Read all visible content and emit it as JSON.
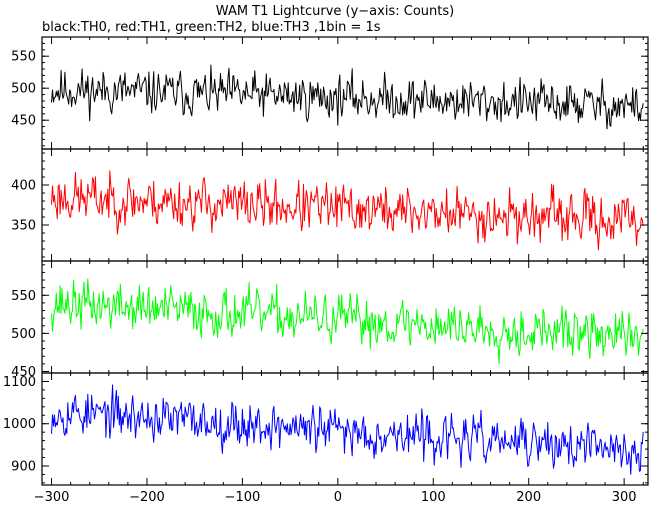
{
  "title": "WAM T1 Lightcurve (y−axis: Counts)",
  "subtitle": "black:TH0, red:TH1, green:TH2, blue:TH3 ,1bin = 1s",
  "chart_data": {
    "type": "line",
    "title": "WAM T1 Lightcurve (y−axis: Counts)",
    "subtitle": "black:TH0, red:TH1, green:TH2, blue:TH3 ,1bin = 1s",
    "xlabel": "",
    "xlim": [
      -310,
      325
    ],
    "x_ticks": [
      -300,
      -200,
      -100,
      0,
      100,
      200,
      300
    ],
    "x_tick_labels": [
      "−300",
      "−200",
      "−100",
      "0",
      "100",
      "200",
      "300"
    ],
    "x_minor_step": 20,
    "x_range_data": [
      -300,
      320
    ],
    "bin_seconds": 1,
    "grid": false,
    "legend": "none",
    "panels": [
      {
        "name": "TH0",
        "color": "#000000",
        "ylim": [
          405,
          580
        ],
        "y_ticks": [
          450,
          500,
          550
        ],
        "y_tick_labels": [
          "450",
          "500",
          "550"
        ],
        "y_minor_step": 10,
        "mean_start": 498,
        "mean_end": 472,
        "noise": 24,
        "seed": 11
      },
      {
        "name": "TH1",
        "color": "#ff0000",
        "ylim": [
          305,
          445
        ],
        "y_ticks": [
          350,
          400
        ],
        "y_tick_labels": [
          "350",
          "400"
        ],
        "y_extra_label": "400",
        "y_minor_step": 10,
        "mean_start": 385,
        "mean_end": 355,
        "noise": 22,
        "seed": 23
      },
      {
        "name": "TH2",
        "color": "#00ff00",
        "ylim": [
          448,
          595
        ],
        "y_ticks": [
          450,
          500,
          550
        ],
        "y_tick_labels": [
          "450",
          "500",
          "550"
        ],
        "y_minor_step": 10,
        "mean_start": 540,
        "mean_end": 495,
        "noise": 22,
        "seed": 37
      },
      {
        "name": "TH3",
        "color": "#0000ff",
        "ylim": [
          855,
          1120
        ],
        "y_ticks": [
          900,
          1000,
          1100
        ],
        "y_tick_labels": [
          "900",
          "1000",
          "1100"
        ],
        "y_minor_step": 20,
        "mean_start": 1030,
        "mean_end": 935,
        "noise": 38,
        "seed": 53
      }
    ]
  }
}
